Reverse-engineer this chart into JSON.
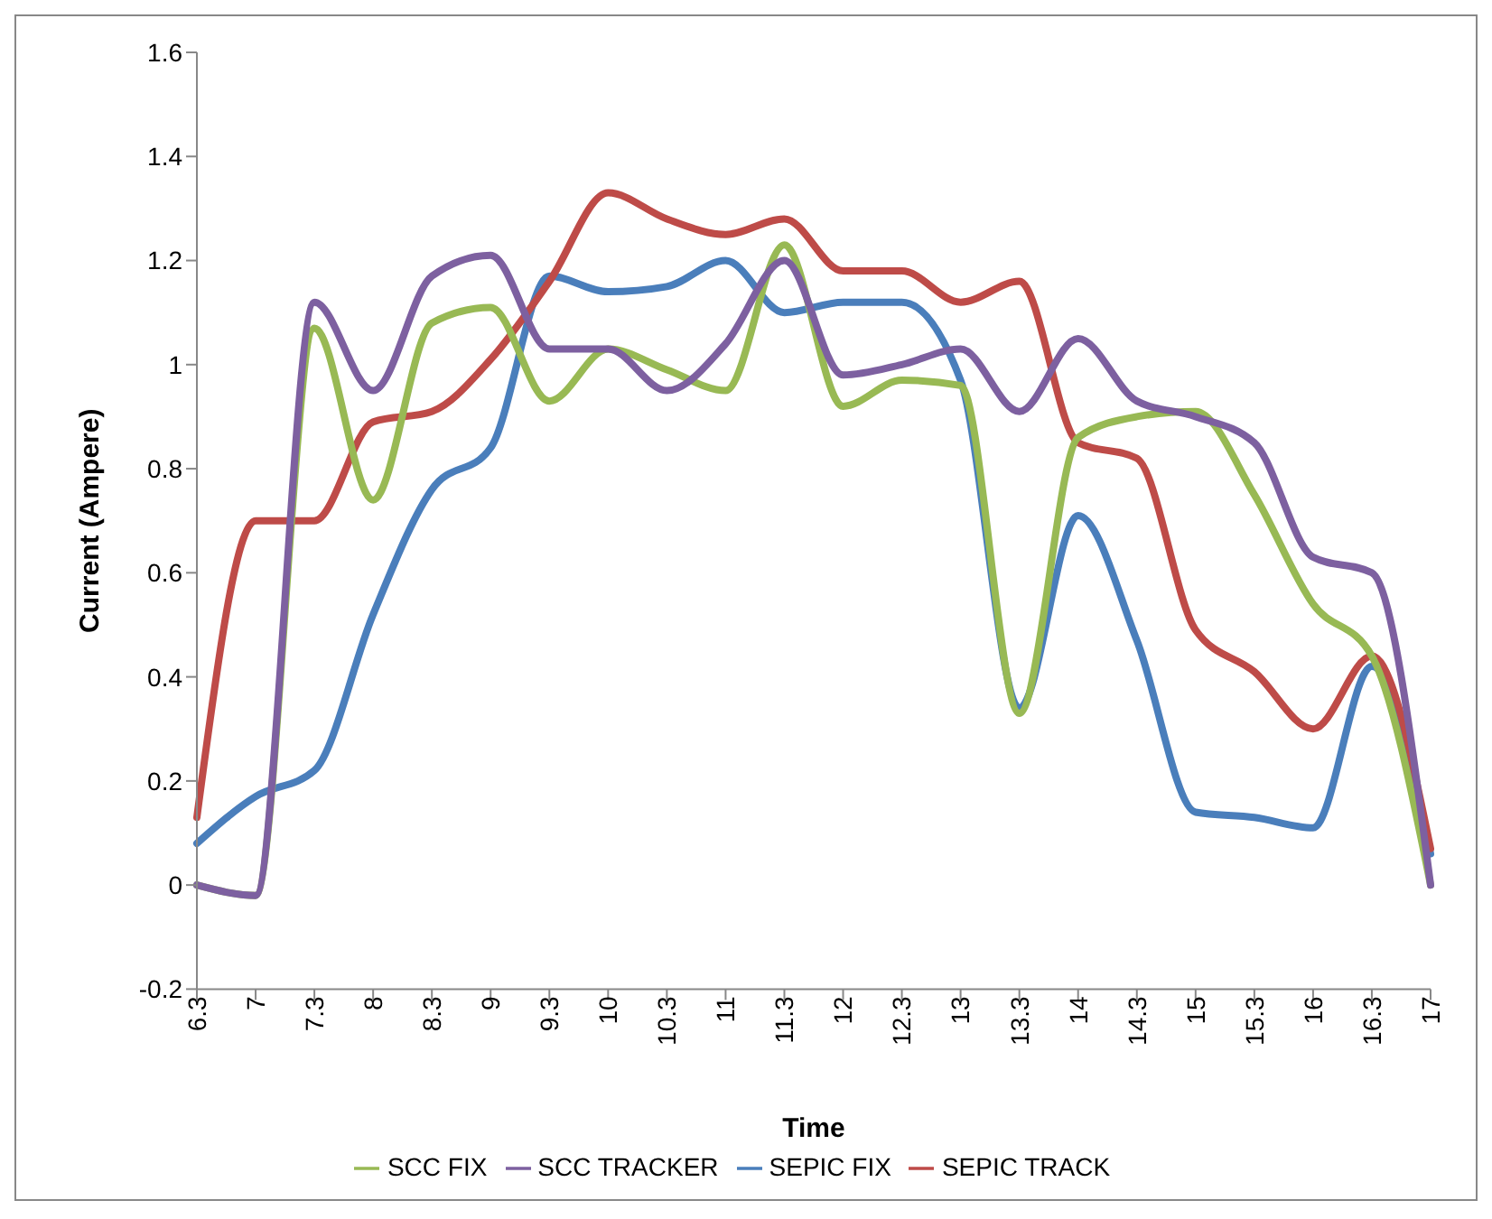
{
  "chart_data": {
    "type": "line",
    "xlabel": "Time",
    "ylabel": "Current (Ampere)",
    "categories": [
      "6.3",
      "7",
      "7.3",
      "8",
      "8.3",
      "9",
      "9.3",
      "10",
      "10.3",
      "11",
      "11.3",
      "12",
      "12.3",
      "13",
      "13.3",
      "14",
      "14.3",
      "15",
      "15.3",
      "16",
      "16.3",
      "17"
    ],
    "series": [
      {
        "name": "SEPIC FIX",
        "color": "#4a7ebb",
        "values": [
          0.08,
          0.17,
          0.22,
          0.52,
          0.76,
          0.84,
          1.17,
          1.14,
          1.15,
          1.2,
          1.1,
          1.12,
          1.12,
          0.97,
          0.34,
          0.71,
          0.47,
          0.14,
          0.13,
          0.11,
          0.42,
          0.06
        ]
      },
      {
        "name": "SEPIC TRACK",
        "color": "#be4b48",
        "values": [
          0.13,
          0.7,
          0.7,
          0.89,
          0.91,
          1.01,
          1.16,
          1.33,
          1.28,
          1.25,
          1.28,
          1.18,
          1.18,
          1.12,
          1.16,
          0.85,
          0.82,
          0.49,
          0.41,
          0.3,
          0.44,
          0.07
        ]
      },
      {
        "name": "SCC FIX",
        "color": "#98b954",
        "values": [
          0,
          -0.02,
          1.07,
          0.74,
          1.08,
          1.11,
          0.93,
          1.03,
          0.99,
          0.95,
          1.23,
          0.92,
          0.97,
          0.96,
          0.33,
          0.86,
          0.9,
          0.91,
          0.75,
          0.54,
          0.44,
          0
        ]
      },
      {
        "name": "SCC TRACKER",
        "color": "#7d60a0",
        "values": [
          0,
          -0.02,
          1.12,
          0.95,
          1.17,
          1.21,
          1.03,
          1.03,
          0.95,
          1.04,
          1.2,
          0.98,
          1.0,
          1.03,
          0.91,
          1.05,
          0.93,
          0.9,
          0.85,
          0.63,
          0.6,
          0
        ]
      }
    ],
    "ylim": [
      -0.2,
      1.6
    ],
    "yticks": [
      -0.2,
      0,
      0.2,
      0.4,
      0.6,
      0.8,
      1,
      1.2,
      1.4,
      1.6
    ],
    "grid": false,
    "legend": "bottom",
    "marker": "none",
    "line_style": "solid"
  }
}
